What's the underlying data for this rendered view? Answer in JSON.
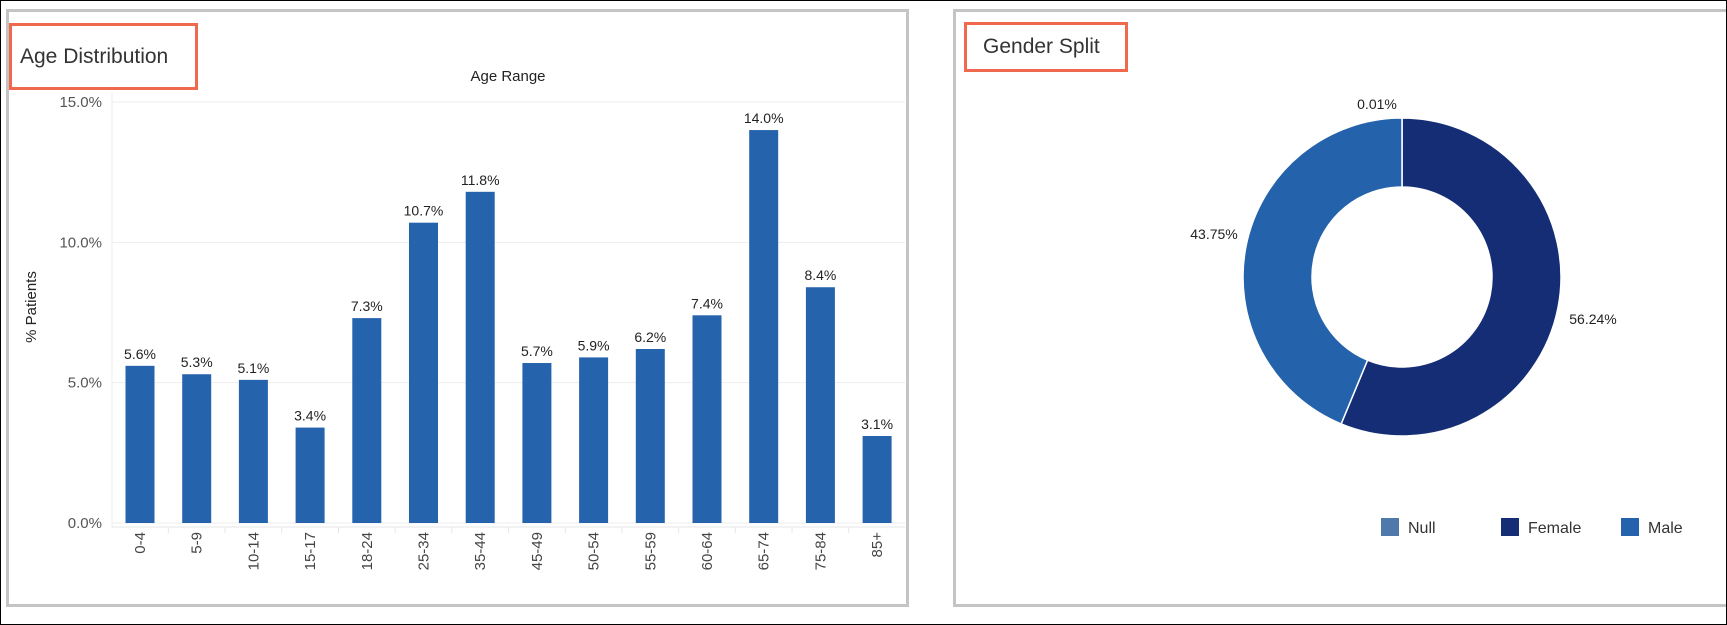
{
  "age_panel": {
    "title": "Age Distribution"
  },
  "gender_panel": {
    "title": "Gender Split"
  },
  "chart_data": [
    {
      "type": "bar",
      "title": "Age Range",
      "xlabel": "",
      "ylabel": "% Patients",
      "categories": [
        "0-4",
        "5-9",
        "10-14",
        "15-17",
        "18-24",
        "25-34",
        "35-44",
        "45-49",
        "50-54",
        "55-59",
        "60-64",
        "65-74",
        "75-84",
        "85+"
      ],
      "values": [
        5.6,
        5.3,
        5.1,
        3.4,
        7.3,
        10.7,
        11.8,
        5.7,
        5.9,
        6.2,
        7.4,
        14.0,
        8.4,
        3.1
      ],
      "data_labels": [
        "5.6%",
        "5.3%",
        "5.1%",
        "3.4%",
        "7.3%",
        "10.7%",
        "11.8%",
        "5.7%",
        "5.9%",
        "6.2%",
        "7.4%",
        "14.0%",
        "8.4%",
        "3.1%"
      ],
      "yticks": [
        "0.0%",
        "5.0%",
        "10.0%",
        "15.0%"
      ],
      "ytick_values": [
        0,
        5,
        10,
        15
      ],
      "ylim": [
        0,
        15
      ],
      "grid": true,
      "bar_color": "#2563ad"
    },
    {
      "type": "pie",
      "donut": true,
      "series": [
        {
          "name": "Null",
          "value": 0.01,
          "label": "0.01%",
          "color": "#5079ab"
        },
        {
          "name": "Female",
          "value": 56.24,
          "label": "56.24%",
          "color": "#142d75"
        },
        {
          "name": "Male",
          "value": 43.75,
          "label": "43.75%",
          "color": "#2462ab"
        }
      ],
      "legend_position": "bottom-right"
    }
  ]
}
